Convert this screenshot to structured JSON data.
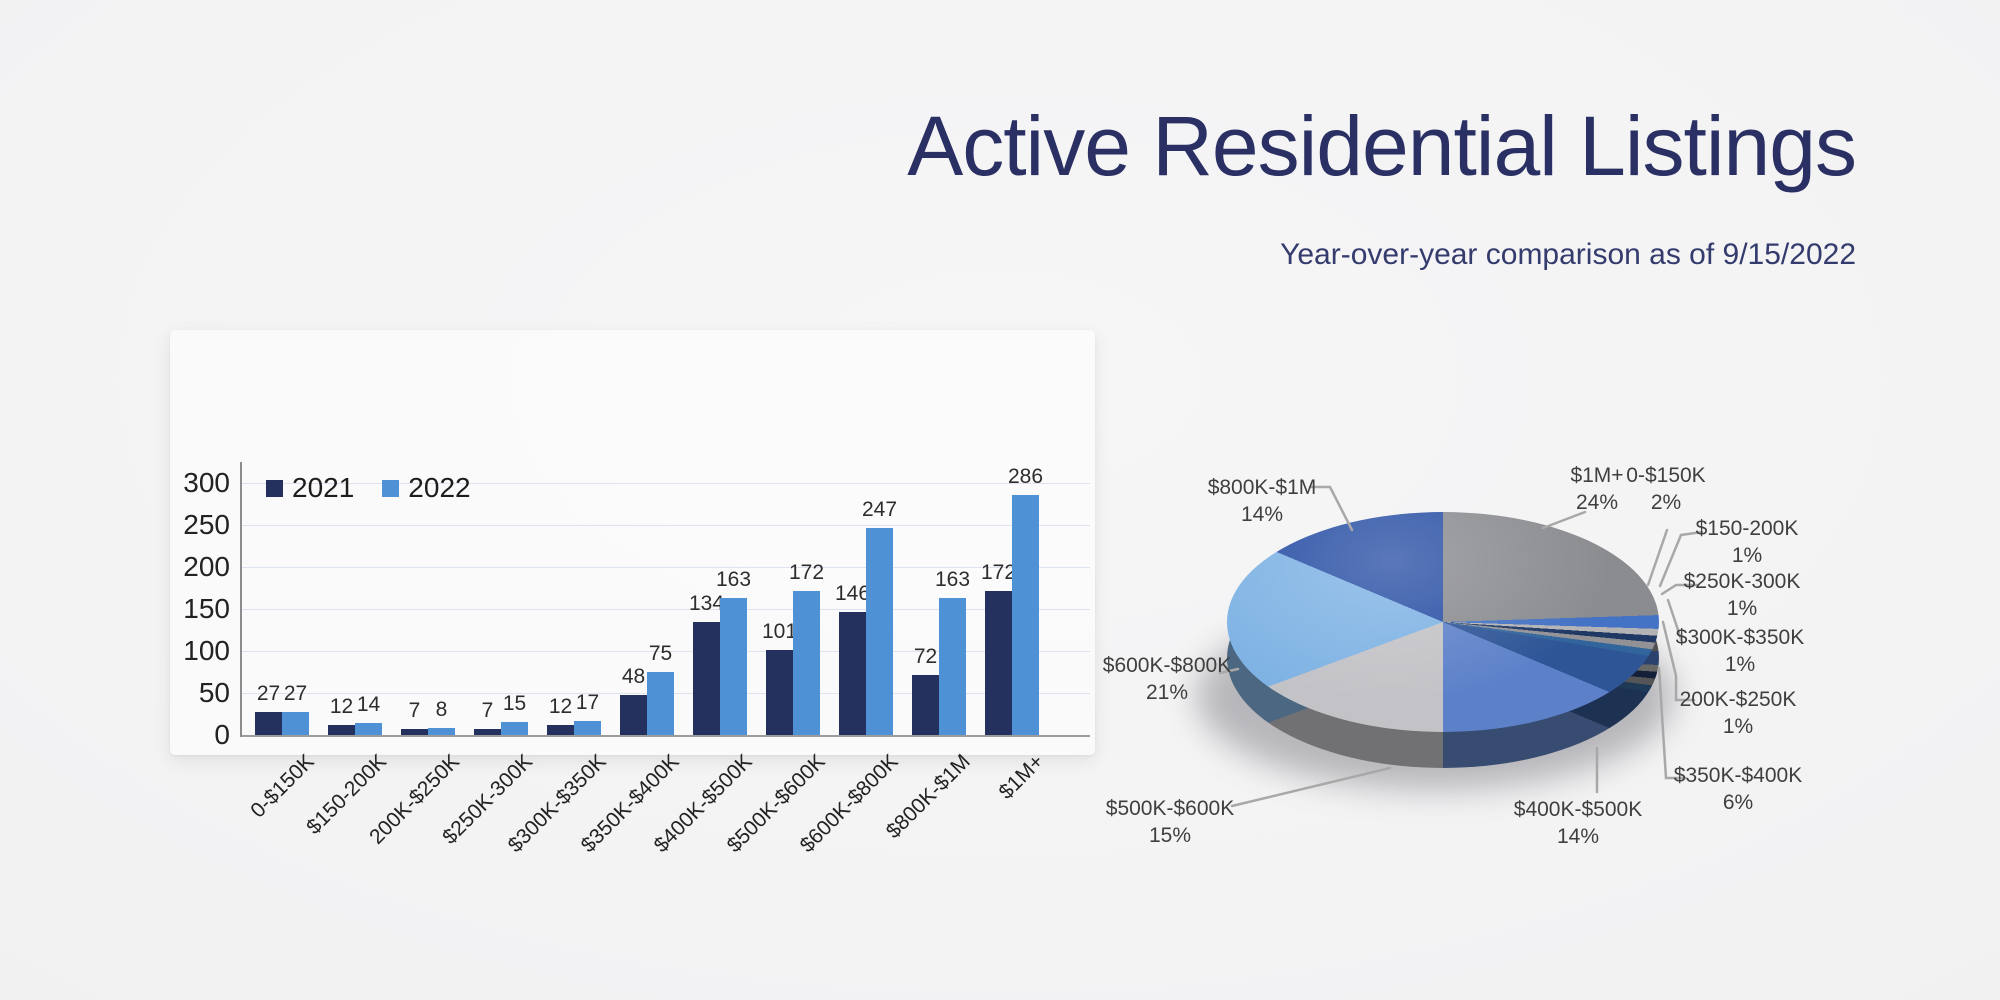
{
  "header": {
    "title": "Active Residential Listings",
    "subtitle": "Year-over-year comparison as of 9/15/2022"
  },
  "colors": {
    "title_text": "#2a3063",
    "series_2021": "#24305e",
    "series_2022": "#4f91d5",
    "gridline": "#dde3ef",
    "axis": "#9c9c9c",
    "leader_line": "#a8a8a8"
  },
  "chart_data": [
    {
      "type": "bar",
      "title": "",
      "xlabel": "",
      "ylabel": "",
      "ylim": [
        0,
        300
      ],
      "yticks": [
        0,
        50,
        100,
        150,
        200,
        250,
        300
      ],
      "grid": true,
      "legend_position": "top-left",
      "categories": [
        "0-$150K",
        "$150-200K",
        "200K-$250K",
        "$250K-300K",
        "$300K-$350K",
        "$350K-$400K",
        "$400K-$500K",
        "$500K-$600K",
        "$600K-$800K",
        "$800K-$1M",
        "$1M+"
      ],
      "series": [
        {
          "name": "2021",
          "color": "#24305e",
          "values": [
            27,
            12,
            7,
            7,
            12,
            48,
            134,
            101,
            146,
            72,
            172
          ]
        },
        {
          "name": "2022",
          "color": "#4f91d5",
          "values": [
            27,
            14,
            8,
            15,
            17,
            75,
            163,
            172,
            247,
            163,
            286
          ]
        }
      ]
    },
    {
      "type": "pie",
      "style": "3d",
      "start_angle_deg": 0,
      "direction": "clockwise",
      "slices": [
        {
          "label": "$1M+",
          "pct": 24,
          "color": "#8b8c90"
        },
        {
          "label": "0-$150K",
          "pct": 2,
          "color": "#4472c4"
        },
        {
          "label": "$150-200K",
          "pct": 1,
          "color": "#b3b3b5"
        },
        {
          "label": "200K-$250K",
          "pct": 1,
          "color": "#1f3864"
        },
        {
          "label": "$250K-300K",
          "pct": 1,
          "color": "#929296"
        },
        {
          "label": "$300K-$350K",
          "pct": 1,
          "color": "#31659c"
        },
        {
          "label": "$350K-$400K",
          "pct": 6,
          "color": "#2e5596"
        },
        {
          "label": "$400K-$500K",
          "pct": 14,
          "color": "#5d81c9"
        },
        {
          "label": "$500K-$600K",
          "pct": 15,
          "color": "#c3c3c7"
        },
        {
          "label": "$600K-$800K",
          "pct": 21,
          "color": "#7fb3e4"
        },
        {
          "label": "$800K-$1M",
          "pct": 14,
          "color": "#2b51a5"
        }
      ]
    }
  ]
}
